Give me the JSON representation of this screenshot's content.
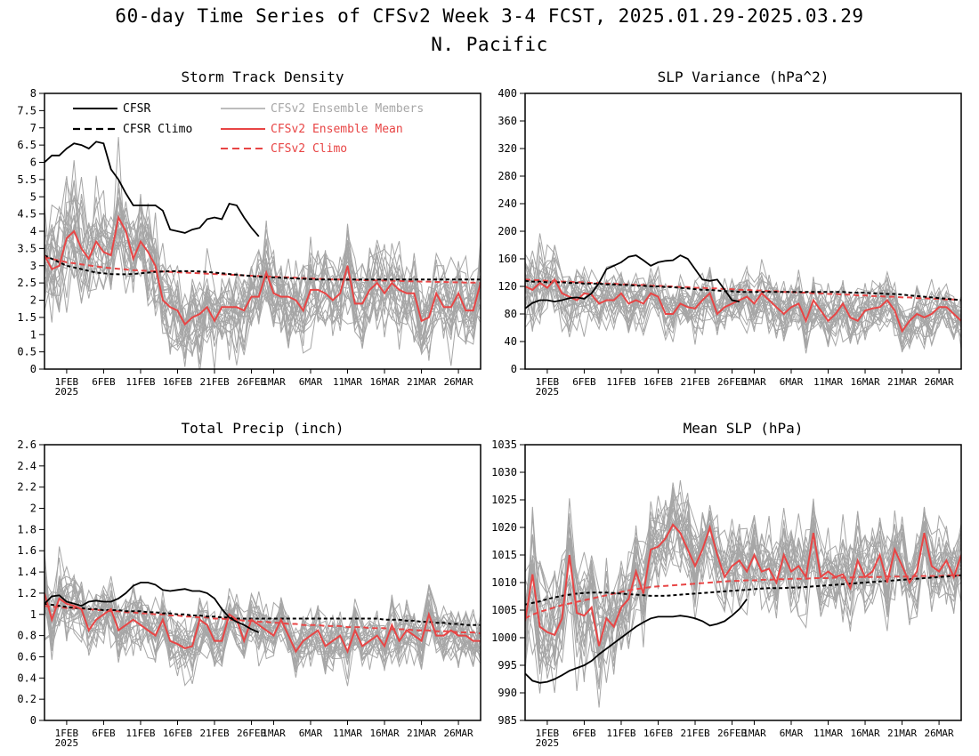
{
  "figure": {
    "title_line1": "60-day Time Series of CFSv2 Week 3-4 FCST, 2025.01.29-2025.03.29",
    "title_line2": "N. Pacific"
  },
  "legend": {
    "cfsr": "CFSR",
    "cfsr_climo": "CFSR Climo",
    "members": "CFSv2 Ensemble Members",
    "ens_mean": "CFSv2 Ensemble Mean",
    "cfsv2_climo": "CFSv2 Climo"
  },
  "colors": {
    "cfsr": "#000000",
    "cfsr_climo": "#000000",
    "members": "#a6a6a6",
    "ens_mean": "#e84545",
    "cfsv2_climo": "#e84545"
  },
  "chart_data": [
    {
      "type": "line",
      "title": "Storm Track Density",
      "ylim": [
        0,
        8
      ],
      "yticks": [
        "0",
        "0.5",
        "1",
        "1.5",
        "2",
        "2.5",
        "3",
        "3.5",
        "4",
        "4.5",
        "5",
        "5.5",
        "6",
        "6.5",
        "7",
        "7.5",
        "8"
      ],
      "xlim": [
        0,
        59
      ],
      "xticks": [
        "1FEB",
        "6FEB",
        "11FEB",
        "16FEB",
        "21FEB",
        "26FEB",
        "1MAR",
        "6MAR",
        "11MAR",
        "16MAR",
        "21MAR",
        "26MAR"
      ],
      "xtick_positions": [
        3,
        8,
        13,
        18,
        23,
        28,
        31,
        36,
        41,
        46,
        51,
        56
      ],
      "year_label": "2025",
      "cfsr_start": 0,
      "cfsr": [
        6.0,
        6.2,
        6.2,
        6.4,
        6.55,
        6.5,
        6.4,
        6.6,
        6.55,
        5.8,
        5.5,
        5.1,
        4.75,
        4.75,
        4.75,
        4.75,
        4.6,
        4.05,
        4.0,
        3.95,
        4.05,
        4.1,
        4.35,
        4.4,
        4.35,
        4.8,
        4.75,
        4.4,
        4.1,
        3.85
      ],
      "cfsr_climo": [
        3.3,
        3.2,
        3.1,
        3.0,
        2.95,
        2.9,
        2.85,
        2.8,
        2.78,
        2.76,
        2.75,
        2.75,
        2.76,
        2.78,
        2.8,
        2.82,
        2.83,
        2.84,
        2.84,
        2.84,
        2.84,
        2.83,
        2.82,
        2.8,
        2.78,
        2.76,
        2.74,
        2.72,
        2.7,
        2.68,
        2.67,
        2.66,
        2.65,
        2.64,
        2.63,
        2.62,
        2.61,
        2.6,
        2.6,
        2.6,
        2.6,
        2.6,
        2.6,
        2.6,
        2.6,
        2.6,
        2.6,
        2.6,
        2.6,
        2.6,
        2.6,
        2.6,
        2.6,
        2.6,
        2.6,
        2.6,
        2.6,
        2.6,
        2.6,
        2.6
      ],
      "ens_mean": [
        3.3,
        2.9,
        3.0,
        3.8,
        4.0,
        3.5,
        3.2,
        3.7,
        3.4,
        3.3,
        4.4,
        4.0,
        3.2,
        3.7,
        3.4,
        3.0,
        2.0,
        1.8,
        1.7,
        1.3,
        1.5,
        1.6,
        1.8,
        1.4,
        1.8,
        1.8,
        1.8,
        1.7,
        2.1,
        2.1,
        2.8,
        2.2,
        2.1,
        2.1,
        2.0,
        1.7,
        2.3,
        2.3,
        2.2,
        2.0,
        2.2,
        3.0,
        1.9,
        1.9,
        2.3,
        2.5,
        2.2,
        2.5,
        2.3,
        2.2,
        2.2,
        1.4,
        1.5,
        2.2,
        1.8,
        1.8,
        2.2,
        1.7,
        1.7,
        2.5
      ],
      "cfsv2_climo": [
        3.25,
        3.2,
        3.15,
        3.1,
        3.07,
        3.04,
        3.01,
        2.98,
        2.95,
        2.93,
        2.91,
        2.89,
        2.87,
        2.86,
        2.85,
        2.84,
        2.83,
        2.82,
        2.81,
        2.8,
        2.79,
        2.78,
        2.77,
        2.76,
        2.75,
        2.74,
        2.73,
        2.72,
        2.71,
        2.7,
        2.69,
        2.68,
        2.67,
        2.66,
        2.65,
        2.64,
        2.63,
        2.62,
        2.61,
        2.6,
        2.6,
        2.59,
        2.59,
        2.58,
        2.58,
        2.57,
        2.57,
        2.56,
        2.56,
        2.55,
        2.55,
        2.54,
        2.54,
        2.53,
        2.53,
        2.52,
        2.52,
        2.51,
        2.51,
        2.5
      ],
      "spread": [
        1.0,
        1.0,
        1.0,
        1.1,
        1.1,
        1.1,
        1.1,
        1.1,
        1.0,
        1.0,
        1.0,
        0.9,
        0.9,
        0.9,
        0.9,
        0.9,
        0.8,
        0.8,
        0.8,
        0.8,
        0.8,
        0.8,
        0.8,
        0.8,
        0.8,
        0.8,
        0.8,
        0.8,
        0.8,
        0.8,
        0.8,
        0.8,
        0.8,
        0.8,
        0.8,
        0.8,
        0.8,
        0.8,
        0.8,
        0.8,
        0.8,
        0.8,
        0.8,
        0.8,
        0.8,
        0.8,
        0.8,
        0.8,
        0.8,
        0.8,
        0.8,
        0.8,
        0.8,
        0.8,
        0.8,
        0.8,
        0.8,
        0.8,
        0.8,
        0.8
      ],
      "member_count": 24
    },
    {
      "type": "line",
      "title": "SLP Variance (hPa^2)",
      "ylim": [
        0,
        400
      ],
      "yticks": [
        "0",
        "40",
        "80",
        "120",
        "160",
        "200",
        "240",
        "280",
        "320",
        "360",
        "400"
      ],
      "xlim": [
        0,
        59
      ],
      "xticks": [
        "1FEB",
        "6FEB",
        "11FEB",
        "16FEB",
        "21FEB",
        "26FEB",
        "1MAR",
        "6MAR",
        "11MAR",
        "16MAR",
        "21MAR",
        "26MAR"
      ],
      "xtick_positions": [
        3,
        8,
        13,
        18,
        23,
        28,
        31,
        36,
        41,
        46,
        51,
        56
      ],
      "year_label": "2025",
      "cfsr_start": 0,
      "cfsr": [
        88,
        96,
        100,
        100,
        98,
        100,
        103,
        104,
        102,
        110,
        125,
        145,
        150,
        155,
        163,
        165,
        158,
        150,
        155,
        157,
        158,
        165,
        160,
        145,
        130,
        128,
        130,
        115,
        100,
        98
      ],
      "cfsr_climo": [
        128,
        127,
        127,
        126,
        126,
        126,
        125,
        125,
        124,
        124,
        124,
        123,
        123,
        122,
        122,
        121,
        121,
        120,
        120,
        119,
        119,
        118,
        117,
        116,
        115,
        115,
        114,
        113,
        113,
        112,
        112,
        112,
        112,
        112,
        112,
        112,
        112,
        112,
        112,
        112,
        112,
        112,
        112,
        112,
        111,
        111,
        111,
        110,
        110,
        109,
        109,
        108,
        107,
        106,
        105,
        104,
        103,
        102,
        101,
        100
      ],
      "ens_mean": [
        120,
        115,
        125,
        118,
        130,
        110,
        105,
        100,
        110,
        108,
        95,
        100,
        100,
        110,
        95,
        100,
        95,
        110,
        105,
        80,
        80,
        95,
        90,
        88,
        100,
        110,
        80,
        90,
        95,
        100,
        105,
        95,
        110,
        100,
        90,
        80,
        90,
        95,
        70,
        100,
        85,
        70,
        80,
        95,
        75,
        70,
        85,
        88,
        90,
        100,
        85,
        55,
        70,
        80,
        75,
        80,
        90,
        90,
        80,
        70
      ],
      "cfsv2_climo": [
        130,
        129,
        129,
        128,
        128,
        127,
        127,
        126,
        126,
        125,
        125,
        124,
        124,
        123,
        123,
        122,
        122,
        121,
        121,
        120,
        120,
        119,
        119,
        118,
        118,
        117,
        117,
        116,
        116,
        115,
        115,
        114,
        114,
        113,
        113,
        112,
        112,
        111,
        111,
        110,
        110,
        109,
        109,
        108,
        108,
        107,
        107,
        106,
        106,
        105,
        105,
        104,
        104,
        103,
        103,
        102,
        102,
        101,
        101,
        100
      ],
      "spread": [
        35,
        38,
        38,
        35,
        32,
        30,
        30,
        28,
        28,
        28,
        28,
        27,
        26,
        26,
        26,
        26,
        25,
        25,
        25,
        25,
        25,
        25,
        25,
        25,
        25,
        25,
        25,
        25,
        25,
        25,
        25,
        25,
        25,
        25,
        25,
        25,
        25,
        25,
        25,
        25,
        25,
        25,
        25,
        25,
        25,
        25,
        25,
        25,
        25,
        25,
        25,
        25,
        25,
        25,
        25,
        25,
        25,
        25,
        25,
        25
      ],
      "member_count": 24
    },
    {
      "type": "line",
      "title": "Total Precip (inch)",
      "ylim": [
        0,
        2.6
      ],
      "yticks": [
        "0",
        "0.2",
        "0.4",
        "0.6",
        "0.8",
        "1",
        "1.2",
        "1.4",
        "1.6",
        "1.8",
        "2",
        "2.2",
        "2.4",
        "2.6"
      ],
      "xlim": [
        0,
        59
      ],
      "xticks": [
        "1FEB",
        "6FEB",
        "11FEB",
        "16FEB",
        "21FEB",
        "26FEB",
        "1MAR",
        "6MAR",
        "11MAR",
        "16MAR",
        "21MAR",
        "26MAR"
      ],
      "xtick_positions": [
        3,
        8,
        13,
        18,
        23,
        28,
        31,
        36,
        41,
        46,
        51,
        56
      ],
      "year_label": "2025",
      "cfsr_start": 0,
      "cfsr": [
        1.1,
        1.17,
        1.18,
        1.12,
        1.1,
        1.08,
        1.12,
        1.13,
        1.12,
        1.12,
        1.15,
        1.2,
        1.27,
        1.3,
        1.3,
        1.28,
        1.23,
        1.22,
        1.23,
        1.24,
        1.22,
        1.22,
        1.2,
        1.15,
        1.05,
        0.97,
        0.93,
        0.9,
        0.86,
        0.83
      ],
      "cfsr_climo": [
        1.1,
        1.09,
        1.08,
        1.07,
        1.06,
        1.06,
        1.05,
        1.05,
        1.04,
        1.04,
        1.04,
        1.03,
        1.03,
        1.03,
        1.02,
        1.02,
        1.01,
        1.01,
        1.0,
        1.0,
        0.99,
        0.99,
        0.98,
        0.98,
        0.97,
        0.97,
        0.96,
        0.96,
        0.96,
        0.96,
        0.96,
        0.96,
        0.96,
        0.96,
        0.96,
        0.96,
        0.96,
        0.96,
        0.96,
        0.96,
        0.96,
        0.96,
        0.96,
        0.96,
        0.96,
        0.96,
        0.95,
        0.95,
        0.95,
        0.94,
        0.94,
        0.93,
        0.93,
        0.92,
        0.92,
        0.91,
        0.91,
        0.9,
        0.9,
        0.9
      ],
      "ens_mean": [
        1.2,
        0.95,
        1.15,
        1.1,
        1.08,
        1.05,
        0.85,
        0.95,
        1.0,
        1.05,
        0.85,
        0.9,
        0.95,
        0.9,
        0.85,
        0.8,
        0.95,
        0.75,
        0.72,
        0.68,
        0.7,
        0.95,
        0.9,
        0.75,
        0.75,
        1.0,
        0.95,
        0.75,
        0.95,
        0.9,
        0.85,
        0.8,
        0.95,
        0.8,
        0.65,
        0.75,
        0.8,
        0.85,
        0.7,
        0.75,
        0.8,
        0.65,
        0.85,
        0.7,
        0.75,
        0.8,
        0.7,
        0.9,
        0.75,
        0.85,
        0.8,
        0.75,
        1.0,
        0.8,
        0.8,
        0.85,
        0.8,
        0.8,
        0.75,
        0.75
      ],
      "cfsv2_climo": [
        1.08,
        1.07,
        1.07,
        1.06,
        1.06,
        1.05,
        1.05,
        1.04,
        1.04,
        1.03,
        1.03,
        1.02,
        1.02,
        1.01,
        1.01,
        1.0,
        1.0,
        0.99,
        0.99,
        0.98,
        0.98,
        0.97,
        0.97,
        0.96,
        0.96,
        0.95,
        0.95,
        0.94,
        0.94,
        0.93,
        0.93,
        0.92,
        0.92,
        0.91,
        0.91,
        0.9,
        0.9,
        0.9,
        0.89,
        0.89,
        0.89,
        0.88,
        0.88,
        0.88,
        0.87,
        0.87,
        0.87,
        0.86,
        0.86,
        0.86,
        0.85,
        0.85,
        0.85,
        0.84,
        0.84,
        0.84,
        0.83,
        0.83,
        0.83,
        0.82
      ],
      "spread": [
        0.25,
        0.25,
        0.25,
        0.22,
        0.2,
        0.2,
        0.18,
        0.18,
        0.18,
        0.18,
        0.18,
        0.18,
        0.17,
        0.17,
        0.17,
        0.17,
        0.17,
        0.17,
        0.17,
        0.17,
        0.17,
        0.17,
        0.17,
        0.17,
        0.17,
        0.17,
        0.17,
        0.17,
        0.17,
        0.17,
        0.17,
        0.17,
        0.17,
        0.17,
        0.17,
        0.17,
        0.17,
        0.17,
        0.17,
        0.17,
        0.17,
        0.17,
        0.17,
        0.17,
        0.17,
        0.17,
        0.17,
        0.17,
        0.17,
        0.17,
        0.17,
        0.17,
        0.17,
        0.17,
        0.17,
        0.17,
        0.17,
        0.17,
        0.17,
        0.17
      ],
      "member_count": 24
    },
    {
      "type": "line",
      "title": "Mean SLP (hPa)",
      "ylim": [
        985,
        1035
      ],
      "yticks": [
        "985",
        "990",
        "995",
        "1000",
        "1005",
        "1010",
        "1015",
        "1020",
        "1025",
        "1030",
        "1035"
      ],
      "xlim": [
        0,
        59
      ],
      "xticks": [
        "1FEB",
        "6FEB",
        "11FEB",
        "16FEB",
        "21FEB",
        "26FEB",
        "1MAR",
        "6MAR",
        "11MAR",
        "16MAR",
        "21MAR",
        "26MAR"
      ],
      "xtick_positions": [
        3,
        8,
        13,
        18,
        23,
        28,
        31,
        36,
        41,
        46,
        51,
        56
      ],
      "year_label": "2025",
      "cfsr_start": 0,
      "cfsr": [
        993.5,
        992.2,
        991.8,
        992,
        992.5,
        993.2,
        994,
        994.5,
        995,
        995.8,
        997,
        998,
        999,
        1000,
        1001,
        1002,
        1002.8,
        1003.5,
        1003.8,
        1003.8,
        1003.8,
        1004,
        1003.8,
        1003.5,
        1003,
        1002.2,
        1002.5,
        1003,
        1004,
        1005.2,
        1007
      ],
      "cfsr_climo": [
        1006,
        1006.3,
        1006.6,
        1007,
        1007.3,
        1007.6,
        1007.8,
        1008,
        1008.1,
        1008.2,
        1008.2,
        1008.2,
        1008.1,
        1008,
        1007.9,
        1007.8,
        1007.7,
        1007.6,
        1007.6,
        1007.6,
        1007.7,
        1007.8,
        1007.9,
        1008,
        1008.1,
        1008.2,
        1008.3,
        1008.4,
        1008.5,
        1008.6,
        1008.7,
        1008.8,
        1008.9,
        1009,
        1009,
        1009,
        1009.1,
        1009.1,
        1009.2,
        1009.3,
        1009.4,
        1009.5,
        1009.6,
        1009.7,
        1009.8,
        1009.9,
        1010,
        1010.1,
        1010.2,
        1010.3,
        1010.4,
        1010.5,
        1010.6,
        1010.7,
        1010.8,
        1010.9,
        1011,
        1011.1,
        1011.2,
        1011.3
      ],
      "ens_mean": [
        1003,
        1011.5,
        1002,
        1001,
        1000.5,
        1003.5,
        1015,
        1004.5,
        1004,
        1005.5,
        998.5,
        1003.5,
        1002,
        1005.5,
        1007,
        1012,
        1008,
        1016,
        1016.5,
        1018,
        1020.5,
        1019,
        1016,
        1013,
        1016,
        1020,
        1015,
        1011,
        1013,
        1014,
        1012,
        1015,
        1012,
        1012.5,
        1010,
        1015,
        1012,
        1013,
        1011,
        1019,
        1011,
        1012,
        1011,
        1011.5,
        1009,
        1014,
        1011,
        1012,
        1015,
        1010,
        1016,
        1013,
        1010,
        1012,
        1019,
        1013,
        1012,
        1014,
        1011,
        1015
      ],
      "cfsv2_climo": [
        1003.5,
        1004.2,
        1004.7,
        1005.1,
        1005.5,
        1005.9,
        1006.2,
        1006.5,
        1006.8,
        1007.1,
        1007.4,
        1007.7,
        1008,
        1008.3,
        1008.6,
        1008.8,
        1009,
        1009.2,
        1009.3,
        1009.4,
        1009.5,
        1009.6,
        1009.7,
        1009.8,
        1009.9,
        1010,
        1010.1,
        1010.2,
        1010.3,
        1010.3,
        1010.4,
        1010.4,
        1010.5,
        1010.5,
        1010.6,
        1010.6,
        1010.7,
        1010.7,
        1010.7,
        1010.8,
        1010.8,
        1010.8,
        1010.9,
        1010.9,
        1010.9,
        1011,
        1011,
        1011,
        1011,
        1011.1,
        1011.1,
        1011.1,
        1011.1,
        1011.2,
        1011.2,
        1011.2,
        1011.2,
        1011.3,
        1011.3,
        1011.3
      ],
      "spread": [
        6,
        7,
        7,
        7,
        7,
        7,
        6.5,
        6.5,
        6.5,
        6,
        6,
        6,
        6,
        5.5,
        5.5,
        5.5,
        5,
        5,
        5,
        5,
        5,
        5,
        5,
        5,
        5,
        5,
        5,
        5,
        5,
        5,
        5,
        5,
        5,
        5,
        5,
        5,
        5,
        5,
        5,
        5,
        5,
        5,
        5,
        5,
        5,
        5,
        5,
        5,
        5,
        5,
        5,
        5,
        5,
        5,
        5,
        5,
        5,
        5,
        5,
        5
      ],
      "member_count": 24
    }
  ]
}
